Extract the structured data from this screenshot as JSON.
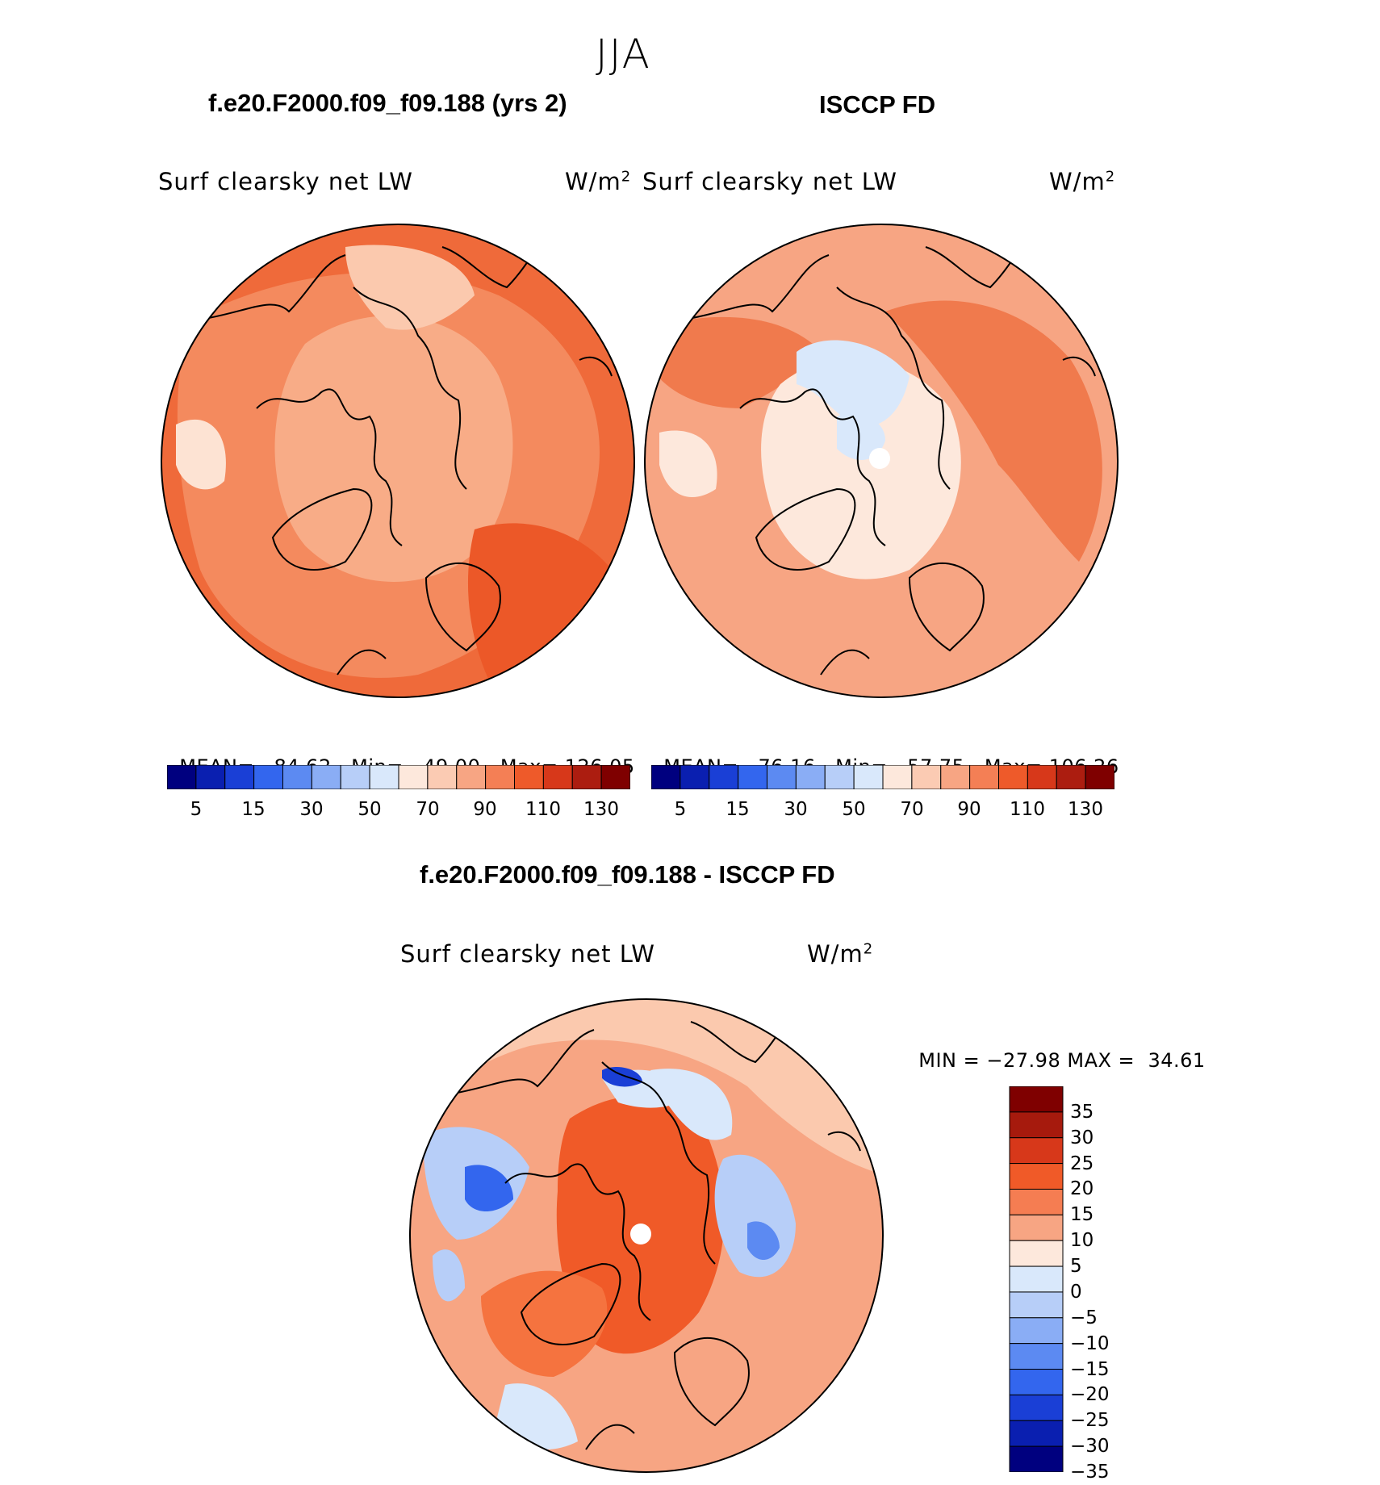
{
  "figure": {
    "season": "JJA",
    "field_label": "Surf clearsky net LW",
    "units": "W/m",
    "units_superscript": "2"
  },
  "panels": [
    {
      "title": "f.e20.F2000.f09_f09.188 (yrs 2)",
      "stats": {
        "mean_label": "MEAN=",
        "mean": "84.62",
        "min_label": "Min=",
        "min": "49.00",
        "max_label": "Max=",
        "max": "126.05"
      }
    },
    {
      "title": "ISCCP FD",
      "stats": {
        "mean_label": "MEAN=",
        "mean": "76.16",
        "min_label": "Min=",
        "min": "57.75",
        "max_label": "Max=",
        "max": "106.26"
      }
    },
    {
      "title": "f.e20.F2000.f09_f09.188 - ISCCP FD",
      "minmax": {
        "min_label": "MIN =",
        "min": "−27.98",
        "max_label": "MAX =",
        "max": "34.61"
      }
    }
  ],
  "colorbars": {
    "absolute": {
      "colors": [
        "#00007f",
        "#0a1fb0",
        "#1a3fd6",
        "#3366ee",
        "#5c8af2",
        "#8aadf5",
        "#b7cef8",
        "#d9e8fb",
        "#fde8dc",
        "#fbcbb3",
        "#f7a583",
        "#f47f55",
        "#ee5a2a",
        "#d7381a",
        "#ac1d10",
        "#7f0000"
      ],
      "labels": [
        "5",
        "15",
        "30",
        "50",
        "70",
        "90",
        "110",
        "130"
      ]
    },
    "difference": {
      "colors_top_to_bottom": [
        "#7f0000",
        "#a61a0d",
        "#d7381a",
        "#f05a28",
        "#f57d52",
        "#f7a583",
        "#fde8dc",
        "#d9e8fb",
        "#b7cef8",
        "#8aadf5",
        "#5c8af2",
        "#3366ee",
        "#1a3fd6",
        "#0a1fb0",
        "#00007f"
      ],
      "labels": [
        "35",
        "30",
        "25",
        "20",
        "15",
        "10",
        "5",
        "0",
        "−5",
        "−10",
        "−15",
        "−20",
        "−25",
        "−30",
        "−35"
      ]
    }
  },
  "chart_data": [
    {
      "type": "heatmap",
      "projection": "north polar stereographic",
      "title": "f.e20.F2000.f09_f09.188 (yrs 2)",
      "variable": "Surf clearsky net LW",
      "units": "W/m2",
      "levels": [
        5,
        10,
        15,
        20,
        30,
        40,
        50,
        60,
        70,
        80,
        90,
        100,
        110,
        120,
        130
      ],
      "mean": 84.62,
      "min": 49.0,
      "max": 126.05
    },
    {
      "type": "heatmap",
      "projection": "north polar stereographic",
      "title": "ISCCP FD",
      "variable": "Surf clearsky net LW",
      "units": "W/m2",
      "levels": [
        5,
        10,
        15,
        20,
        30,
        40,
        50,
        60,
        70,
        80,
        90,
        100,
        110,
        120,
        130
      ],
      "mean": 76.16,
      "min": 57.75,
      "max": 106.26
    },
    {
      "type": "heatmap",
      "projection": "north polar stereographic",
      "title": "f.e20.F2000.f09_f09.188 - ISCCP FD",
      "variable": "Surf clearsky net LW",
      "units": "W/m2",
      "levels": [
        -35,
        -30,
        -25,
        -20,
        -15,
        -10,
        -5,
        0,
        5,
        10,
        15,
        20,
        25,
        30,
        35
      ],
      "min": -27.98,
      "max": 34.61
    }
  ]
}
